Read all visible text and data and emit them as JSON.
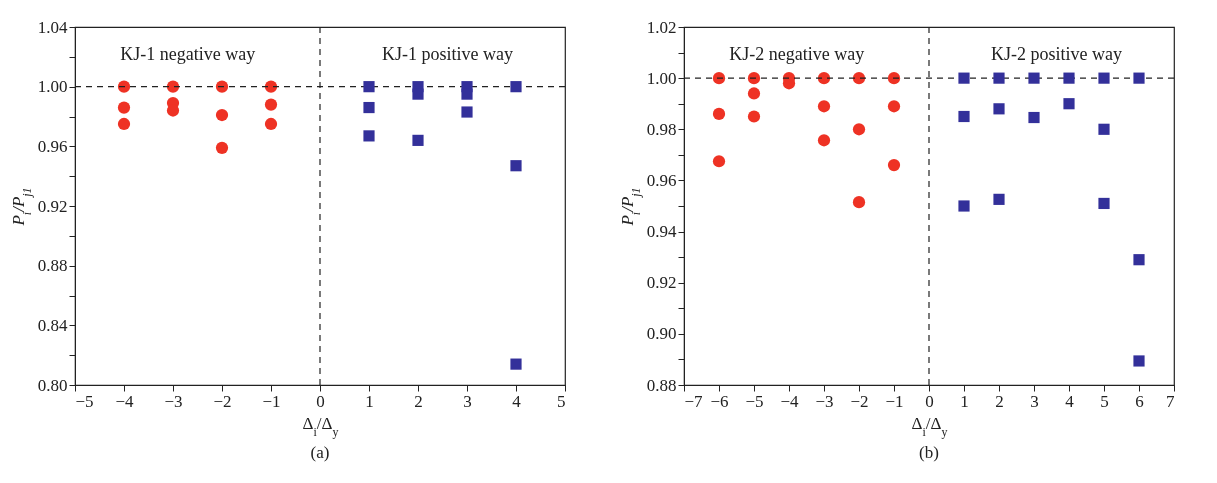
{
  "chart_data": [
    {
      "type": "scatter",
      "xlabel": "Δ$_{i}$/Δ$_{y}$",
      "ylabel": "P$_{i}$/P$_{j1}$",
      "xlim": [
        -5,
        5
      ],
      "ylim": [
        0.8,
        1.04
      ],
      "xticks": [
        {
          "value": -5,
          "label": "−5"
        },
        {
          "value": -4,
          "label": "−4"
        },
        {
          "value": -3,
          "label": "−3"
        },
        {
          "value": -2,
          "label": "−2"
        },
        {
          "value": -1,
          "label": "−1"
        },
        0,
        1,
        2,
        3,
        4,
        5
      ],
      "yticks": [
        {
          "value": 0.8,
          "label": "0.80"
        },
        {
          "value": 0.82,
          "label": null
        },
        0.84,
        {
          "value": 0.86,
          "label": null
        },
        0.88,
        {
          "value": 0.9,
          "label": null
        },
        0.92,
        {
          "value": 0.94,
          "label": null
        },
        0.96,
        {
          "value": 0.98,
          "label": null
        },
        {
          "value": 1,
          "label": "1.00"
        },
        {
          "value": 1.02,
          "label": null
        },
        1.04
      ],
      "series": [
        {
          "color": "#ee3224",
          "marker": "circle",
          "x": [
            -4,
            -4,
            -4,
            -3,
            -3,
            -3,
            -2,
            -2,
            -2,
            -1,
            -1,
            -1
          ],
          "values": [
            1,
            0.986,
            0.975,
            1,
            0.989,
            0.984,
            1,
            0.981,
            0.959,
            1,
            0.988,
            0.975
          ]
        },
        {
          "color": "#33309a",
          "marker": "square",
          "x": [
            1,
            1,
            1,
            2,
            2,
            2,
            3,
            3,
            3,
            4,
            4,
            4
          ],
          "values": [
            1,
            0.986,
            0.967,
            1,
            0.995,
            0.964,
            1,
            0.995,
            0.983,
            1,
            0.947,
            0.814
          ]
        }
      ],
      "ref_lines": [
        {
          "axis": "x",
          "value": 0,
          "line_style": "dashed",
          "color": "#222222"
        },
        {
          "axis": "y",
          "value": 1,
          "line_style": "dashed",
          "color": "#222222"
        }
      ],
      "annotations": [
        "KJ-1 negative way",
        "KJ-1 positive way",
        "(a)"
      ],
      "grid": false
    },
    {
      "type": "scatter",
      "xlabel": "Δ$_{i}$/Δ$_{y}$",
      "ylabel": "P$_{i}$/P$_{j1}$",
      "xlim": [
        -7,
        7
      ],
      "ylim": [
        0.88,
        1.02
      ],
      "xticks": [
        {
          "value": -7,
          "label": "−7"
        },
        {
          "value": -6,
          "label": "−6"
        },
        {
          "value": -5,
          "label": "−5"
        },
        {
          "value": -4,
          "label": "−4"
        },
        {
          "value": -3,
          "label": "−3"
        },
        {
          "value": -2,
          "label": "−2"
        },
        {
          "value": -1,
          "label": "−1"
        },
        0,
        1,
        2,
        3,
        4,
        5,
        6,
        7
      ],
      "yticks": [
        0.88,
        {
          "value": 0.89,
          "label": null
        },
        {
          "value": 0.9,
          "label": "0.90"
        },
        {
          "value": 0.91,
          "label": null
        },
        0.92,
        {
          "value": 0.93,
          "label": null
        },
        0.94,
        {
          "value": 0.95,
          "label": null
        },
        0.96,
        {
          "value": 0.97,
          "label": null
        },
        0.98,
        {
          "value": 0.99,
          "label": null
        },
        {
          "value": 1,
          "label": "1.00"
        },
        {
          "value": 1.01,
          "label": null
        },
        1.02
      ],
      "series": [
        {
          "color": "#ee3224",
          "marker": "circle",
          "x": [
            -6,
            -6,
            -6,
            -5,
            -5,
            -5,
            -4,
            -4,
            -3,
            -3,
            -3,
            -2,
            -2,
            -2,
            -1,
            -1,
            -1
          ],
          "values": [
            1,
            0.986,
            0.9675,
            1,
            0.994,
            0.985,
            1,
            0.998,
            1,
            0.989,
            0.9757,
            1,
            0.98,
            0.9515,
            1,
            0.989,
            0.966
          ]
        },
        {
          "color": "#33309a",
          "marker": "square",
          "x": [
            1,
            1,
            1,
            2,
            2,
            2,
            3,
            3,
            4,
            4,
            5,
            5,
            5,
            6,
            6,
            6
          ],
          "values": [
            1,
            0.985,
            0.95,
            1,
            0.988,
            0.9526,
            1,
            0.9846,
            1,
            0.99,
            1,
            0.98,
            0.951,
            1,
            0.929,
            0.8894
          ]
        }
      ],
      "ref_lines": [
        {
          "axis": "x",
          "value": 0,
          "line_style": "dashed",
          "color": "#222222"
        },
        {
          "axis": "y",
          "value": 1,
          "line_style": "dashed",
          "color": "#222222"
        }
      ],
      "annotations": [
        "KJ-2 negative way",
        "KJ-2 positive way",
        "(b)"
      ],
      "grid": false
    }
  ]
}
